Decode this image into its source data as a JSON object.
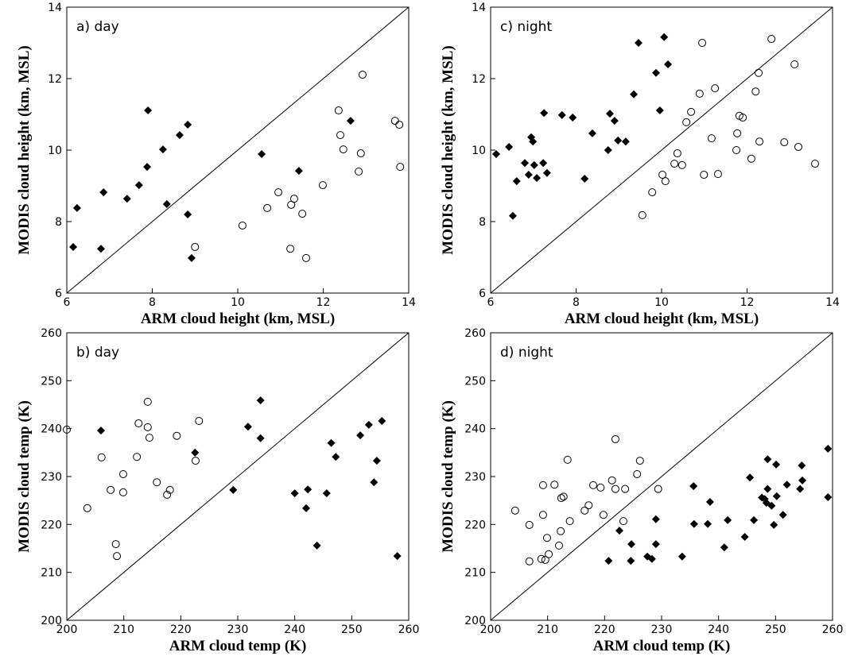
{
  "chart_data": [
    {
      "type": "scatter",
      "annotation": "a) day",
      "xlabel": "ARM cloud height (km, MSL)",
      "ylabel": "MODIS cloud height (km, MSL)",
      "xlim": [
        6,
        14
      ],
      "ylim": [
        6,
        14
      ],
      "xticks": [
        6,
        8,
        10,
        12,
        14
      ],
      "yticks": [
        6,
        8,
        10,
        12,
        14
      ],
      "identity_line": true,
      "series": [
        {
          "color": "#000000",
          "marker": "diamond",
          "x": [
            6.15,
            6.24,
            6.8,
            6.86,
            7.41,
            7.69,
            7.88,
            7.9,
            8.25,
            8.34,
            8.64,
            8.83,
            8.83,
            8.92,
            10.56,
            11.43,
            12.64
          ],
          "values": [
            7.29,
            8.38,
            7.24,
            8.82,
            8.64,
            9.02,
            9.53,
            11.11,
            10.02,
            8.49,
            10.42,
            10.71,
            8.2,
            6.98,
            9.89,
            9.42,
            10.82
          ]
        },
        {
          "color": "#000000",
          "marker": "circle",
          "x": [
            9.0,
            10.11,
            10.69,
            10.95,
            11.25,
            11.32,
            11.23,
            11.51,
            11.6,
            11.99,
            12.4,
            12.36,
            12.47,
            12.92,
            12.88,
            12.83,
            13.68,
            13.78,
            13.8
          ],
          "values": [
            7.29,
            7.89,
            8.38,
            8.82,
            8.47,
            8.64,
            7.24,
            8.22,
            6.98,
            9.02,
            10.42,
            11.11,
            10.02,
            12.11,
            9.91,
            9.4,
            10.82,
            10.71,
            9.53
          ]
        }
      ]
    },
    {
      "type": "scatter",
      "annotation": "b) day",
      "xlabel": "ARM cloud temp (K)",
      "ylabel": "MODIS cloud temp (K)",
      "xlim": [
        200,
        260
      ],
      "ylim": [
        200,
        260
      ],
      "xticks": [
        200,
        210,
        220,
        230,
        240,
        250,
        260
      ],
      "yticks": [
        200,
        210,
        220,
        230,
        240,
        250,
        260
      ],
      "identity_line": true,
      "series": [
        {
          "color": "#000000",
          "marker": "diamond",
          "x": [
            206.0,
            222.5,
            229.2,
            231.8,
            234.0,
            234.0,
            240.0,
            242.0,
            242.3,
            243.9,
            245.6,
            246.4,
            247.2,
            251.5,
            253.0,
            253.9,
            254.4,
            255.3,
            258.0
          ],
          "values": [
            239.6,
            235.0,
            227.2,
            240.4,
            245.9,
            238.0,
            226.5,
            223.4,
            227.3,
            215.6,
            226.5,
            237.0,
            234.1,
            238.6,
            240.8,
            228.8,
            233.3,
            241.6,
            213.4
          ]
        },
        {
          "color": "#000000",
          "marker": "circle",
          "x": [
            200.0,
            203.6,
            206.1,
            207.7,
            208.6,
            208.8,
            209.9,
            209.9,
            212.3,
            212.6,
            214.2,
            214.2,
            214.5,
            215.8,
            217.6,
            218.1,
            219.3,
            222.6,
            223.2
          ],
          "values": [
            239.8,
            223.4,
            234.0,
            227.2,
            215.9,
            213.4,
            230.5,
            226.7,
            234.1,
            241.1,
            245.6,
            240.3,
            238.1,
            228.8,
            226.2,
            227.2,
            238.5,
            233.3,
            241.6
          ]
        }
      ]
    },
    {
      "type": "scatter",
      "annotation": "c) night",
      "xlabel": "ARM cloud height (km, MSL)",
      "ylabel": "MODIS cloud height (km, MSL)",
      "xlim": [
        6,
        14
      ],
      "ylim": [
        6,
        14
      ],
      "xticks": [
        6,
        8,
        10,
        12,
        14
      ],
      "yticks": [
        6,
        8,
        10,
        12,
        14
      ],
      "identity_line": true,
      "series": [
        {
          "color": "#000000",
          "marker": "diamond",
          "x": [
            6.13,
            6.43,
            6.52,
            6.61,
            6.8,
            6.89,
            6.95,
            6.99,
            7.02,
            7.08,
            7.23,
            7.32,
            7.25,
            7.67,
            7.92,
            8.2,
            8.38,
            8.75,
            8.79,
            8.9,
            8.98,
            9.16,
            9.35,
            9.46,
            9.87,
            9.96,
            10.06,
            10.15
          ],
          "values": [
            9.89,
            10.09,
            8.16,
            9.13,
            9.64,
            9.31,
            10.36,
            10.24,
            9.58,
            9.22,
            9.64,
            9.36,
            11.04,
            10.98,
            10.91,
            9.2,
            10.47,
            10.0,
            11.02,
            10.82,
            10.27,
            10.24,
            11.56,
            13.0,
            12.16,
            11.11,
            13.16,
            12.4
          ]
        },
        {
          "color": "#000000",
          "marker": "circle",
          "x": [
            9.55,
            9.78,
            10.02,
            10.09,
            10.3,
            10.37,
            10.48,
            10.58,
            10.69,
            10.89,
            10.95,
            10.99,
            11.17,
            11.25,
            11.32,
            11.75,
            11.77,
            11.82,
            11.9,
            12.1,
            12.2,
            12.27,
            12.29,
            12.57,
            12.87,
            13.11,
            13.2,
            13.59
          ],
          "values": [
            8.18,
            8.82,
            9.31,
            9.13,
            9.62,
            9.91,
            9.58,
            10.78,
            11.07,
            11.58,
            13.0,
            9.31,
            10.33,
            11.73,
            9.33,
            10.0,
            10.47,
            10.96,
            10.91,
            9.76,
            11.64,
            12.16,
            10.24,
            13.11,
            10.22,
            12.4,
            10.09,
            9.62
          ]
        }
      ]
    },
    {
      "type": "scatter",
      "annotation": "d) night",
      "xlabel": "ARM cloud temp (K)",
      "ylabel": "MODIS cloud temp (K)",
      "xlim": [
        200,
        260
      ],
      "ylim": [
        200,
        260
      ],
      "xticks": [
        200,
        210,
        220,
        230,
        240,
        250,
        260
      ],
      "yticks": [
        200,
        210,
        220,
        230,
        240,
        250,
        260
      ],
      "identity_line": true,
      "series": [
        {
          "color": "#000000",
          "marker": "diamond",
          "x": [
            220.7,
            222.6,
            224.6,
            224.7,
            227.5,
            228.3,
            229.0,
            229.0,
            233.6,
            235.6,
            235.7,
            238.1,
            238.5,
            241.0,
            241.6,
            244.6,
            245.5,
            246.2,
            247.6,
            248.1,
            248.4,
            248.6,
            248.6,
            249.3,
            249.7,
            250.1,
            250.2,
            251.3,
            252.0,
            254.3,
            254.6,
            254.7,
            259.2,
            259.2
          ],
          "values": [
            212.4,
            218.7,
            212.4,
            215.9,
            213.3,
            212.8,
            221.1,
            215.9,
            213.3,
            228.0,
            220.1,
            220.1,
            224.7,
            215.2,
            220.9,
            217.4,
            229.8,
            220.9,
            225.6,
            225.3,
            224.5,
            233.6,
            227.4,
            223.9,
            219.9,
            232.5,
            225.9,
            222.0,
            228.3,
            227.4,
            232.3,
            229.2,
            235.8,
            225.7
          ]
        },
        {
          "color": "#000000",
          "marker": "circle",
          "x": [
            204.3,
            206.8,
            206.8,
            208.9,
            209.2,
            209.2,
            209.6,
            209.9,
            210.2,
            211.2,
            212.0,
            212.3,
            212.4,
            212.8,
            213.5,
            213.9,
            216.5,
            217.2,
            218.0,
            219.3,
            219.8,
            221.3,
            221.9,
            221.9,
            223.3,
            223.6,
            225.7,
            226.2,
            229.4
          ],
          "values": [
            222.9,
            212.3,
            219.9,
            212.8,
            228.2,
            222.0,
            212.6,
            217.2,
            213.8,
            228.3,
            215.6,
            218.6,
            225.5,
            225.8,
            233.5,
            220.7,
            222.9,
            224.0,
            228.2,
            227.7,
            222.0,
            229.2,
            227.4,
            237.8,
            220.7,
            227.4,
            230.5,
            233.3,
            227.4
          ]
        }
      ]
    }
  ]
}
